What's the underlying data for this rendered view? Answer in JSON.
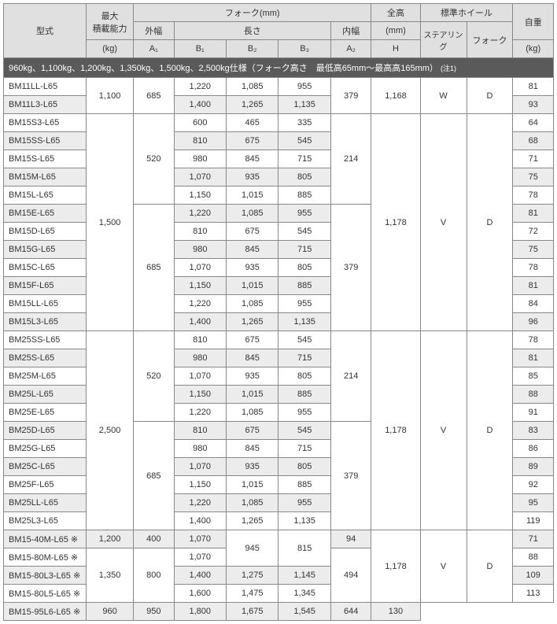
{
  "headers": {
    "model": "型式",
    "capacity_line1": "最大",
    "capacity_line2": "積載能力",
    "capacity_unit": "(kg)",
    "fork_group": "フォーク(mm)",
    "outer_width": "外幅",
    "length": "長さ",
    "inner_width": "内幅",
    "a1": "A₁",
    "b1": "B₁",
    "b2": "B₂",
    "b3": "B₃",
    "a2": "A₂",
    "height_line1": "全高",
    "height_unit": "(mm)",
    "h": "H",
    "wheel_group": "標準ホイール",
    "steering": "ステアリング",
    "fork_wheel": "フォーク",
    "weight_line1": "自重",
    "weight_unit": "(kg)"
  },
  "section": {
    "text": "960kg、1,100kg、1,200kg、1,350kg、1,500kg、2,500kg仕様（フォーク高さ　最低高65mm～最高高165mm）",
    "note": "(注1)"
  },
  "rows": [
    {
      "model": "BM11LL-L65",
      "cap": "1,100",
      "a1": "685",
      "b1": "1,220",
      "b2": "1,085",
      "b3": "955",
      "a2": "379",
      "h": "1,168",
      "st": "W",
      "fw": "D",
      "wt": "81",
      "cap_rs": 2,
      "a1_rs": 2,
      "a2_rs": 2,
      "h_rs": 2,
      "st_rs": 2,
      "fw_rs": 2,
      "striped": 0
    },
    {
      "model": "BM11L3-L65",
      "b1": "1,400",
      "b2": "1,265",
      "b3": "1,135",
      "wt": "93",
      "striped": 1
    },
    {
      "model": "BM15S3-L65",
      "cap": "1,500",
      "a1": "520",
      "b1": "600",
      "b2": "465",
      "b3": "335",
      "a2": "214",
      "h": "1,178",
      "st": "V",
      "fw": "D",
      "wt": "64",
      "cap_rs": 12,
      "a1_rs": 5,
      "a2_rs": 5,
      "h_rs": 12,
      "st_rs": 12,
      "fw_rs": 12,
      "striped": 0
    },
    {
      "model": "BM15SS-L65",
      "b1": "810",
      "b2": "675",
      "b3": "545",
      "wt": "68",
      "striped": 1
    },
    {
      "model": "BM15S-L65",
      "b1": "980",
      "b2": "845",
      "b3": "715",
      "wt": "71",
      "striped": 0
    },
    {
      "model": "BM15M-L65",
      "b1": "1,070",
      "b2": "935",
      "b3": "805",
      "wt": "75",
      "striped": 1
    },
    {
      "model": "BM15L-L65",
      "b1": "1,150",
      "b2": "1,015",
      "b3": "885",
      "wt": "78",
      "striped": 0
    },
    {
      "model": "BM15E-L65",
      "a1": "685",
      "b1": "1,220",
      "b2": "1,085",
      "b3": "955",
      "a2": "379",
      "wt": "81",
      "a1_rs": 7,
      "a2_rs": 7,
      "striped": 1
    },
    {
      "model": "BM15D-L65",
      "b1": "810",
      "b2": "675",
      "b3": "545",
      "wt": "72",
      "striped": 0
    },
    {
      "model": "BM15G-L65",
      "b1": "980",
      "b2": "845",
      "b3": "715",
      "wt": "75",
      "striped": 1
    },
    {
      "model": "BM15C-L65",
      "b1": "1,070",
      "b2": "935",
      "b3": "805",
      "wt": "78",
      "striped": 0
    },
    {
      "model": "BM15F-L65",
      "b1": "1,150",
      "b2": "1,015",
      "b3": "885",
      "wt": "81",
      "striped": 1
    },
    {
      "model": "BM15LL-L65",
      "b1": "1,220",
      "b2": "1,085",
      "b3": "955",
      "wt": "84",
      "striped": 0
    },
    {
      "model": "BM15L3-L65",
      "b1": "1,400",
      "b2": "1,265",
      "b3": "1,135",
      "wt": "96",
      "striped": 1
    },
    {
      "model": "BM25SS-L65",
      "cap": "2,500",
      "a1": "520",
      "b1": "810",
      "b2": "675",
      "b3": "545",
      "a2": "214",
      "h": "1,178",
      "st": "V",
      "fw": "D",
      "wt": "78",
      "cap_rs": 11,
      "a1_rs": 5,
      "a2_rs": 5,
      "h_rs": 11,
      "st_rs": 11,
      "fw_rs": 11,
      "striped": 0
    },
    {
      "model": "BM25S-L65",
      "b1": "980",
      "b2": "845",
      "b3": "715",
      "wt": "81",
      "striped": 1
    },
    {
      "model": "BM25M-L65",
      "b1": "1,070",
      "b2": "935",
      "b3": "805",
      "wt": "85",
      "striped": 0
    },
    {
      "model": "BM25L-L65",
      "b1": "1,150",
      "b2": "1,015",
      "b3": "885",
      "wt": "88",
      "striped": 1
    },
    {
      "model": "BM25E-L65",
      "b1": "1,220",
      "b2": "1,085",
      "b3": "955",
      "wt": "91",
      "striped": 0
    },
    {
      "model": "BM25D-L65",
      "a1": "685",
      "b1": "810",
      "b2": "675",
      "b3": "545",
      "a2": "379",
      "wt": "83",
      "a1_rs": 6,
      "a2_rs": 6,
      "striped": 1
    },
    {
      "model": "BM25G-L65",
      "b1": "980",
      "b2": "845",
      "b3": "715",
      "wt": "86",
      "striped": 0
    },
    {
      "model": "BM25C-L65",
      "b1": "1,070",
      "b2": "935",
      "b3": "805",
      "wt": "89",
      "striped": 1
    },
    {
      "model": "BM25F-L65",
      "b1": "1,150",
      "b2": "1,015",
      "b3": "885",
      "wt": "92",
      "striped": 0
    },
    {
      "model": "BM25LL-L65",
      "b1": "1,220",
      "b2": "1,085",
      "b3": "955",
      "wt": "95",
      "striped": 1
    },
    {
      "model": "BM25L3-L65",
      "b1": "1,400",
      "b2": "1,265",
      "b3": "1,135",
      "wt": "119",
      "striped": 0
    },
    {
      "model": "BM15-40M-L65 ※",
      "cap": "1,200",
      "a1": "400",
      "b1": "1,070",
      "b2": "945",
      "b3": "815",
      "a2": "94",
      "h": "1,178",
      "st": "V",
      "fw": "D",
      "wt": "71",
      "a2_rs": 1,
      "b2_rs": 2,
      "b3_rs": 2,
      "h_rs": 4,
      "st_rs": 4,
      "fw_rs": 4,
      "striped": 1
    },
    {
      "model": "BM15-80M-L65 ※",
      "cap": "1,350",
      "a1": "800",
      "b1": "1,070",
      "a2": "494",
      "wt": "88",
      "cap_rs": 3,
      "a1_rs": 3,
      "a2_rs": 3,
      "striped": 0
    },
    {
      "model": "BM15-80L3-L65 ※",
      "b1": "1,400",
      "b2": "1,275",
      "b3": "1,145",
      "wt": "109",
      "striped": 1
    },
    {
      "model": "BM15-80L5-L65 ※",
      "b1": "1,600",
      "b2": "1,475",
      "b3": "1,345",
      "wt": "113",
      "striped": 0
    },
    {
      "model": "BM15-95L6-L65 ※",
      "cap": "960",
      "a1": "950",
      "b1": "1,800",
      "b2": "1,675",
      "b3": "1,545",
      "a2": "644",
      "wt": "130",
      "striped": 1
    }
  ]
}
